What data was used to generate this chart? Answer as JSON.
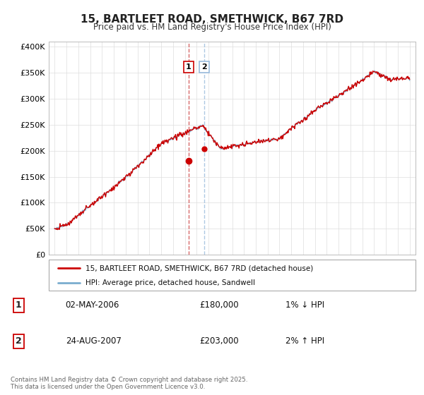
{
  "title": "15, BARTLEET ROAD, SMETHWICK, B67 7RD",
  "subtitle": "Price paid vs. HM Land Registry's House Price Index (HPI)",
  "legend_line1": "15, BARTLEET ROAD, SMETHWICK, B67 7RD (detached house)",
  "legend_line2": "HPI: Average price, detached house, Sandwell",
  "sale1_date": "02-MAY-2006",
  "sale1_price": "£180,000",
  "sale1_change": "1% ↓ HPI",
  "sale1_year": 2006.33,
  "sale1_value": 180000,
  "sale2_date": "24-AUG-2007",
  "sale2_price": "£203,000",
  "sale2_change": "2% ↑ HPI",
  "sale2_year": 2007.64,
  "sale2_value": 203000,
  "ylabel_ticks": [
    "£0",
    "£50K",
    "£100K",
    "£150K",
    "£200K",
    "£250K",
    "£300K",
    "£350K",
    "£400K"
  ],
  "ylabel_values": [
    0,
    50000,
    100000,
    150000,
    200000,
    250000,
    300000,
    350000,
    400000
  ],
  "xlim": [
    1994.5,
    2025.5
  ],
  "ylim": [
    0,
    410000
  ],
  "line_color_red": "#cc0000",
  "line_color_blue": "#7aadcf",
  "marker_color": "#cc0000",
  "vline1_color": "#cc4444",
  "vline2_color": "#99bbdd",
  "footnote": "Contains HM Land Registry data © Crown copyright and database right 2025.\nThis data is licensed under the Open Government Licence v3.0.",
  "background_color": "#ffffff",
  "grid_color": "#dddddd"
}
